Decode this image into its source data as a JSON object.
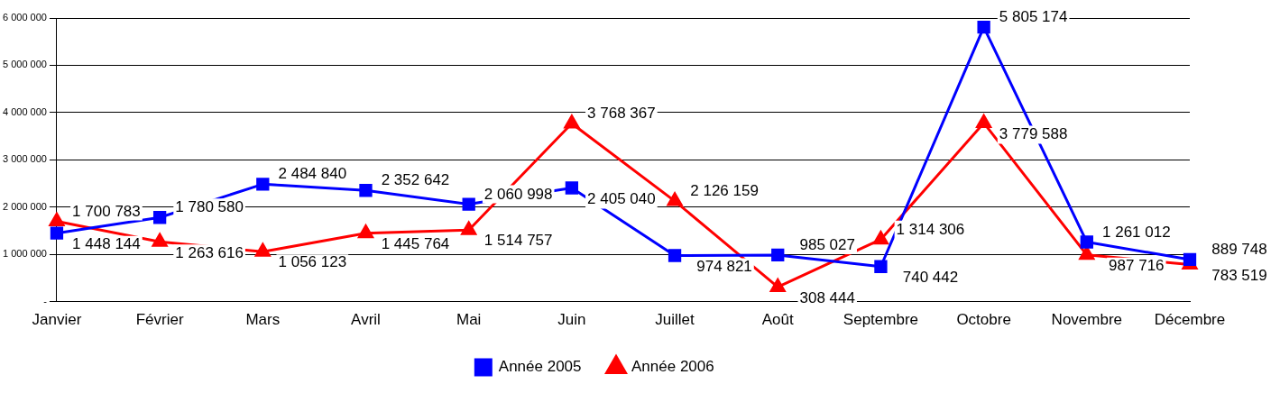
{
  "chart_data": {
    "type": "line",
    "categories": [
      "Janvier",
      "Février",
      "Mars",
      "Avril",
      "Mai",
      "Juin",
      "Juillet",
      "Août",
      "Septembre",
      "Octobre",
      "Novembre",
      "Décembre"
    ],
    "series": [
      {
        "name": "Année 2005",
        "color": "#0000ff",
        "marker": "square",
        "values": [
          1448144,
          1780580,
          2484840,
          2352642,
          2060998,
          2405040,
          974821,
          985027,
          740442,
          5805174,
          1261012,
          889748
        ],
        "value_labels": [
          "1 448 144",
          "1 780 580",
          "2 484 840",
          "2 352 642",
          "2 060 998",
          "2 405 040",
          "974 821",
          "985 027",
          "740 442",
          "5 805 174",
          "1 261 012",
          "889 748"
        ]
      },
      {
        "name": "Année 2006",
        "color": "#ff0000",
        "marker": "triangle",
        "values": [
          1700783,
          1263616,
          1056123,
          1445764,
          1514757,
          3768367,
          2126159,
          308444,
          1314306,
          3779588,
          987716,
          783519
        ],
        "value_labels": [
          "1 700 783",
          "1 263 616",
          "1 056 123",
          "1 445 764",
          "1 514 757",
          "3 768 367",
          "2 126 159",
          "308 444",
          "1 314 306",
          "3 779 588",
          "987 716",
          "783 519"
        ]
      }
    ],
    "ylim": [
      0,
      6000000
    ],
    "yticks": [
      {
        "value": 0,
        "label": "-"
      },
      {
        "value": 1000000,
        "label": "1 000 000"
      },
      {
        "value": 2000000,
        "label": "2 000 000"
      },
      {
        "value": 3000000,
        "label": "3 000 000"
      },
      {
        "value": 4000000,
        "label": "4 000 000"
      },
      {
        "value": 5000000,
        "label": "5 000 000"
      },
      {
        "value": 6000000,
        "label": "6 000 000"
      }
    ],
    "grid": "y",
    "legend": "bottom",
    "line_style": "solid"
  }
}
